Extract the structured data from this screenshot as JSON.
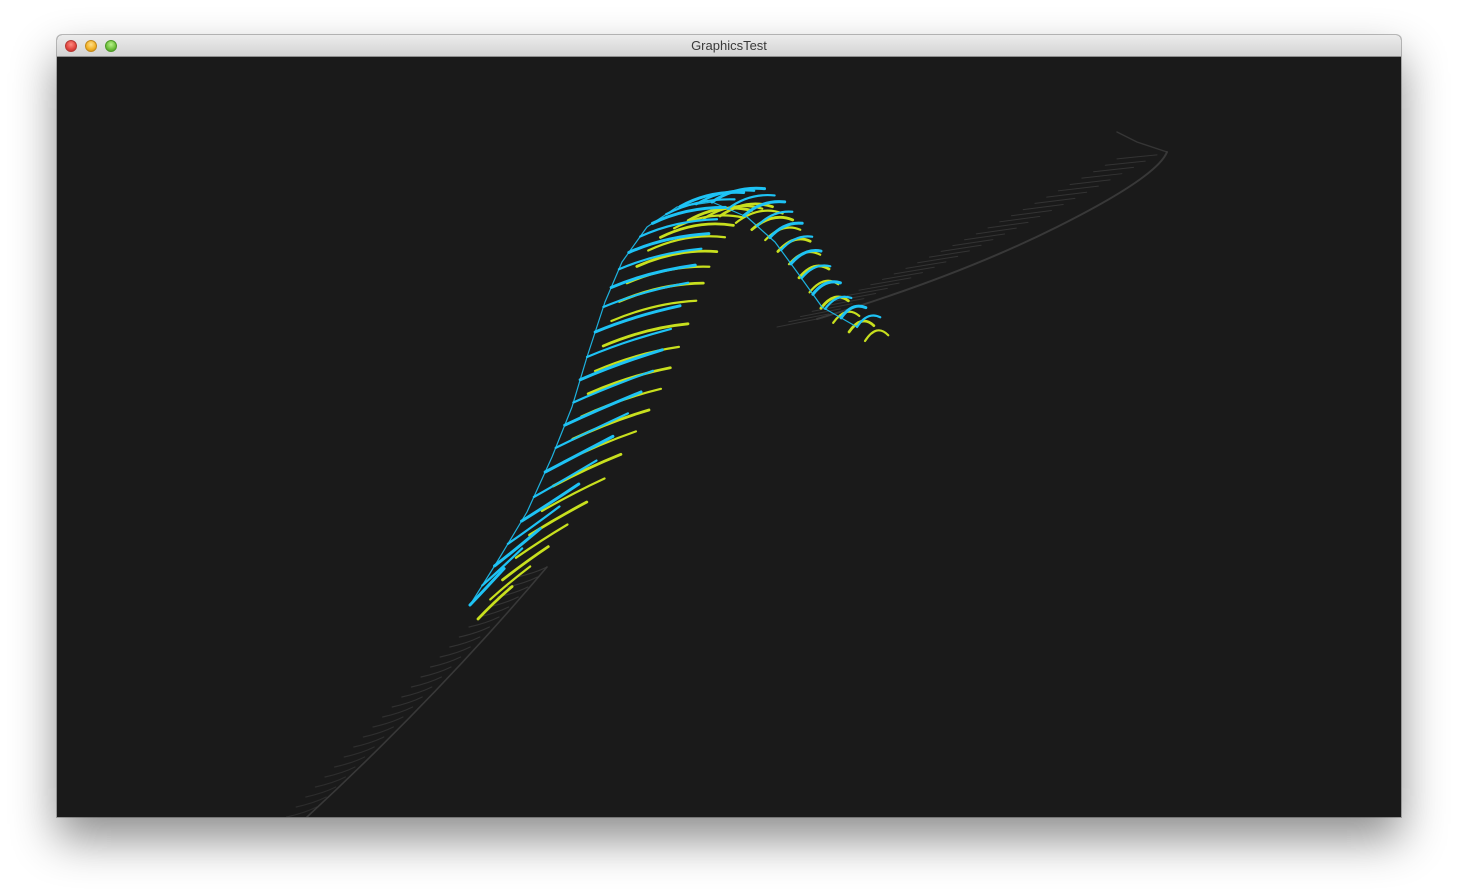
{
  "window": {
    "title": "GraphicsTest",
    "controls": [
      "close-button",
      "minimize-button",
      "zoom-button"
    ]
  },
  "scene": {
    "background": "#1a1a1a",
    "colors": {
      "front_ribbon": "#1ec3f5",
      "back_ribbon": "#c8e01e",
      "trail": "#3c3c3c"
    }
  }
}
